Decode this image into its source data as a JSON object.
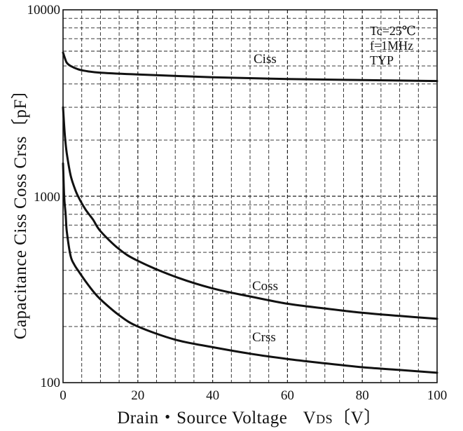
{
  "chart_data": {
    "type": "line",
    "xlabel": "Drain・Source Voltage",
    "xlabel_symbol": "V",
    "xlabel_subscript": "DS",
    "xlabel_unit": "〔V〕",
    "ylabel": "Capacitance  Ciss Coss Crss〔pF〕",
    "xlim": [
      0,
      100
    ],
    "ylim": [
      100,
      10000
    ],
    "yscale": "log",
    "grid": true,
    "x_ticks": [
      "0",
      "20",
      "40",
      "60",
      "80",
      "100"
    ],
    "y_ticks": [
      "100",
      "1000",
      "10000"
    ],
    "conditions": [
      "Tc=25℃",
      "f=1MHz",
      "TYP"
    ],
    "series": [
      {
        "name": "Ciss",
        "x": [
          0,
          0.5,
          1,
          2,
          4,
          6,
          10,
          20,
          40,
          60,
          80,
          100
        ],
        "y": [
          5900,
          5500,
          5200,
          5000,
          4800,
          4700,
          4600,
          4500,
          4350,
          4250,
          4200,
          4150
        ]
      },
      {
        "name": "Coss",
        "x": [
          0,
          0.5,
          1,
          2,
          3,
          4,
          6,
          8,
          10,
          15,
          20,
          30,
          40,
          50,
          60,
          70,
          80,
          90,
          100
        ],
        "y": [
          3000,
          2100,
          1700,
          1300,
          1120,
          1000,
          850,
          750,
          650,
          520,
          450,
          370,
          320,
          290,
          265,
          250,
          237,
          228,
          220
        ]
      },
      {
        "name": "Crss",
        "x": [
          0,
          0.3,
          0.7,
          1,
          2,
          3,
          4,
          6,
          8,
          10,
          15,
          20,
          30,
          40,
          50,
          60,
          70,
          80,
          90,
          100
        ],
        "y": [
          1500,
          1000,
          800,
          650,
          480,
          430,
          400,
          350,
          310,
          280,
          230,
          200,
          170,
          155,
          143,
          134,
          127,
          121,
          117,
          113
        ]
      }
    ]
  }
}
